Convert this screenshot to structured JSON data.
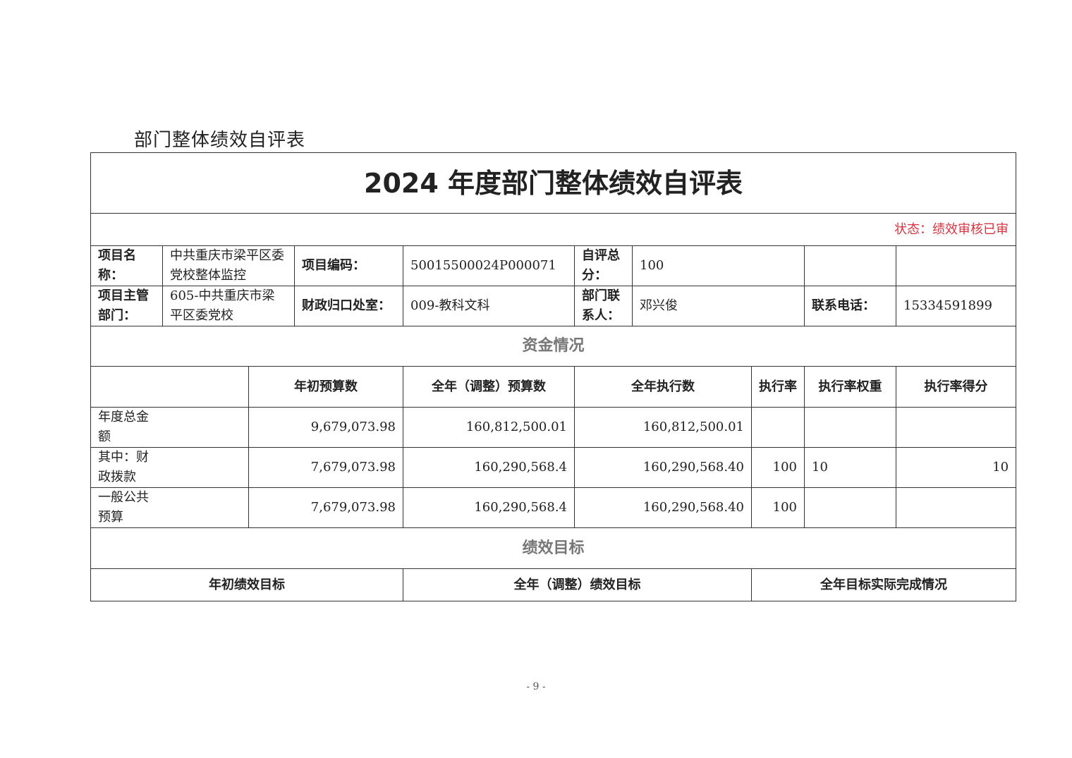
{
  "doc_title": "部门整体绩效自评表",
  "table_title": "2024 年度部门整体绩效自评表",
  "status": "状态：绩效审核已审",
  "info": {
    "project_name_label": "项目名称：",
    "project_name": "中共重庆市梁平区委党校整体监控",
    "project_code_label": "项目编码：",
    "project_code": "50015500024P000071",
    "score_label": "自评总分：",
    "score": "100",
    "dept_label": "项目主管部门：",
    "dept": "605-中共重庆市梁平区委党校",
    "finance_label": "财政归口处室：",
    "finance": "009-教科文科",
    "contact_label": "部门联系人：",
    "contact": "邓兴俊",
    "phone_label": "联系电话：",
    "phone": "15334591899"
  },
  "funds": {
    "section": "资金情况",
    "headers": [
      "年初预算数",
      "全年（调整）预算数",
      "全年执行数",
      "执行率",
      "执行率权重",
      "执行率得分"
    ],
    "rows": [
      {
        "label": "年度总金额",
        "initial": "9,679,073.98",
        "adjusted": "160,812,500.01",
        "executed": "160,812,500.01",
        "rate": "",
        "weight": "",
        "score": ""
      },
      {
        "label": "其中：财政拨款",
        "initial": "7,679,073.98",
        "adjusted": "160,290,568.4",
        "executed": "160,290,568.40",
        "rate": "100",
        "weight": "10",
        "score": "10"
      },
      {
        "label": "一般公共预算",
        "initial": "7,679,073.98",
        "adjusted": "160,290,568.4",
        "executed": "160,290,568.40",
        "rate": "100",
        "weight": "",
        "score": ""
      }
    ]
  },
  "goals": {
    "section": "绩效目标",
    "headers": [
      "年初绩效目标",
      "全年（调整）绩效目标",
      "全年目标实际完成情况"
    ]
  },
  "page_number": "- 9 -"
}
